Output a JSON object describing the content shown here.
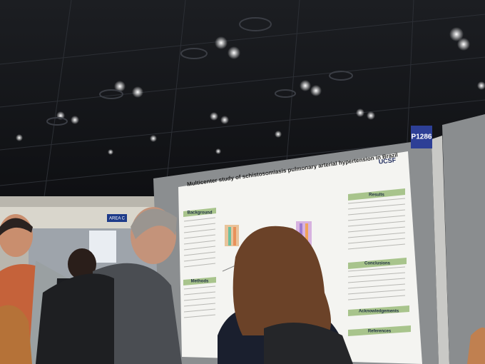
{
  "poster": {
    "title": "Multicenter study of schistosomiasis pulmonary arterial hypertension in Brazil",
    "logo": "UCSF",
    "board_number": "P1286",
    "area_sign": "AREA C",
    "sections": {
      "background": "Background",
      "methods": "Methods",
      "results": "Results",
      "conclusions": "Conclusions",
      "acknowledgements": "Acknowledgements",
      "references": "References"
    }
  }
}
